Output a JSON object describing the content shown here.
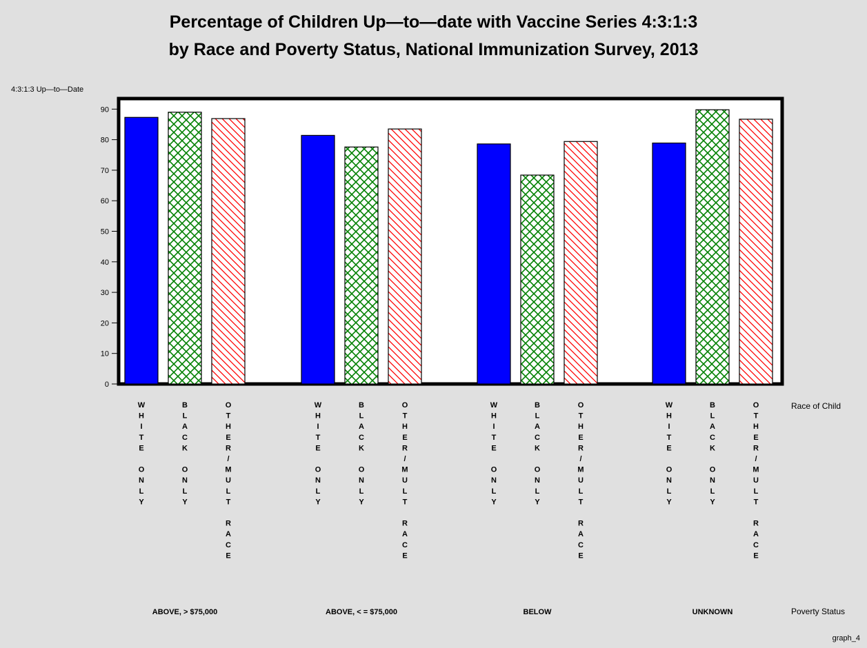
{
  "chart_data": {
    "type": "bar",
    "title": "Percentage of Children Up—to—date with Vaccine Series 4:3:1:3",
    "subtitle": "by Race and Poverty Status, National Immunization Survey, 2013",
    "ylabel": "4:3:1:3 Up—to—Date",
    "race_axis_label": "Race of Child",
    "poverty_axis_label": "Poverty Status",
    "footnote": "graph_4",
    "ylim": [
      0,
      92
    ],
    "yticks": [
      0,
      10,
      20,
      30,
      40,
      50,
      60,
      70,
      80,
      90
    ],
    "grid": false,
    "subcategories": [
      "WHITE ONLY",
      "BLACK ONLY",
      "OTHER/MULT RACE"
    ],
    "subcategory_styles": [
      {
        "fill": "solid",
        "color": "#0000ff"
      },
      {
        "fill": "crosshatch",
        "color": "#008000"
      },
      {
        "fill": "diagonal-hatch",
        "color": "#ff0000"
      }
    ],
    "groups": [
      {
        "name": "ABOVE, > $75,000",
        "values": [
          87.3,
          89.0,
          86.9
        ]
      },
      {
        "name": "ABOVE, < = $75,000",
        "values": [
          81.4,
          77.6,
          83.5
        ]
      },
      {
        "name": "BELOW",
        "values": [
          78.6,
          68.4,
          79.4
        ]
      },
      {
        "name": "UNKNOWN",
        "values": [
          78.9,
          89.8,
          86.7
        ]
      }
    ]
  }
}
